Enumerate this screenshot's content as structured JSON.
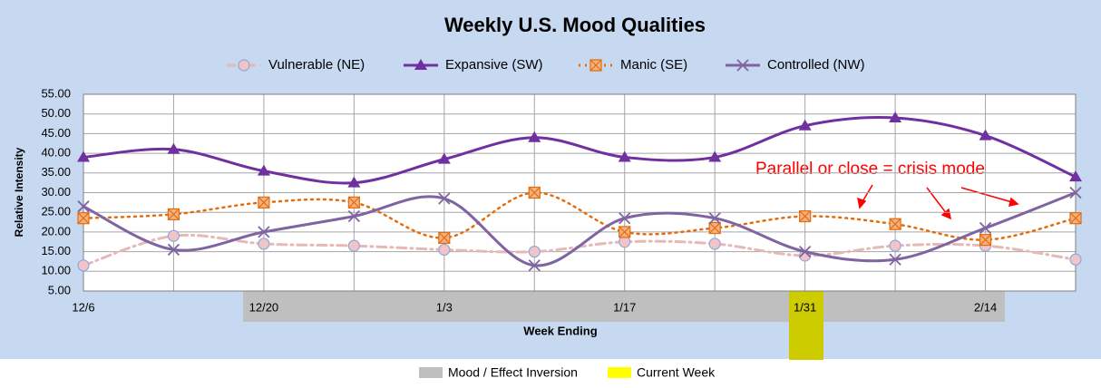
{
  "chart_data": {
    "type": "line",
    "title": "Weekly U.S. Mood Qualities",
    "ylabel": "Relative Intensity",
    "xlabel": "Week Ending",
    "annotation": "Parallel or close = crisis mode",
    "categories": [
      "12/6",
      null,
      "12/20",
      null,
      "1/3",
      null,
      "1/17",
      null,
      "1/31",
      null,
      "2/14",
      null
    ],
    "series": [
      {
        "name": "Vulnerable (NE)",
        "color": "#e6b9b8",
        "marker": "circle",
        "style": "dashdot",
        "values": [
          11.5,
          19,
          17,
          16.5,
          15.5,
          15,
          17.5,
          17,
          14,
          16.5,
          16.5,
          13
        ]
      },
      {
        "name": "Expansive (SW)",
        "color": "#7030a0",
        "marker": "triangle",
        "style": "solid",
        "values": [
          39,
          41,
          35.5,
          32.5,
          38.5,
          44,
          39,
          39,
          47,
          49,
          44.5,
          34
        ]
      },
      {
        "name": "Manic (SE)",
        "color": "#e46c0a",
        "marker": "square",
        "style": "dotted",
        "values": [
          23.5,
          24.5,
          27.5,
          27.5,
          18.5,
          30,
          20,
          21,
          24,
          22,
          18,
          23.5
        ]
      },
      {
        "name": "Controlled (NW)",
        "color": "#8064a2",
        "marker": "x",
        "style": "solid",
        "values": [
          26.5,
          15.5,
          20,
          24,
          28.5,
          11.5,
          23.5,
          23.5,
          15,
          13,
          21,
          30
        ]
      }
    ],
    "band_legend": [
      {
        "label": "Mood / Effect Inversion",
        "color": "#bfbfbf"
      },
      {
        "label": "Current Week",
        "color": "#ffff00"
      }
    ],
    "ylim": [
      5,
      55
    ],
    "yticks": [
      {
        "value": 5,
        "label": "5.00"
      },
      {
        "value": 10,
        "label": "10.00"
      },
      {
        "value": 15,
        "label": "15.00"
      },
      {
        "value": 20,
        "label": "20.00"
      },
      {
        "value": 25,
        "label": "25.00"
      },
      {
        "value": 30,
        "label": "30.00"
      },
      {
        "value": 35,
        "label": "35.00"
      },
      {
        "value": 40,
        "label": "40.00"
      },
      {
        "value": 45,
        "label": "45.00"
      },
      {
        "value": 50,
        "label": "50.00"
      },
      {
        "value": 55,
        "label": "55.00"
      }
    ],
    "grid": true,
    "legend": "top"
  }
}
